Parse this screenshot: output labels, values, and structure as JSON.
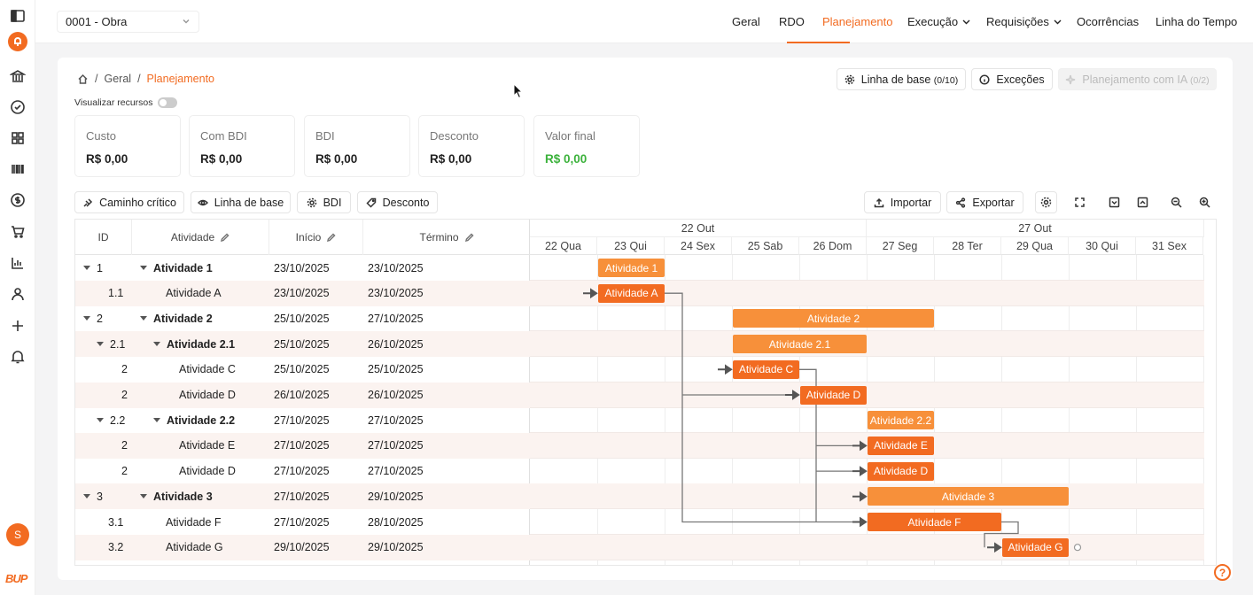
{
  "sidebar": {
    "icons": [
      "sidebar-toggle-icon",
      "bell-icon",
      "bank-icon",
      "check-circle-icon",
      "grid-icon",
      "barcode-icon",
      "dollar-icon",
      "cart-icon",
      "bar-chart-icon",
      "user-icon",
      "plus-icon",
      "notification-icon"
    ],
    "avatar_initial": "S",
    "logo": "BUP"
  },
  "topbar": {
    "project": "0001 - Obra",
    "nav": [
      {
        "label": "Geral"
      },
      {
        "label": "RDO"
      },
      {
        "label": "Planejamento",
        "active": true
      },
      {
        "label": "Execução",
        "dropdown": true
      },
      {
        "label": "Requisições",
        "dropdown": true
      },
      {
        "label": "Ocorrências"
      },
      {
        "label": "Linha do Tempo"
      }
    ]
  },
  "breadcrumb": {
    "items": [
      "Geral",
      "Planejamento"
    ]
  },
  "header_buttons": {
    "baseline_label": "Linha de base",
    "baseline_count": "(0/10)",
    "exceptions_label": "Exceções",
    "ai_label": "Planejamento com IA",
    "ai_count": "(0/2)"
  },
  "resources_toggle": {
    "label": "Visualizar recursos",
    "on": false
  },
  "kpis": [
    {
      "label": "Custo",
      "value": "R$ 0,00"
    },
    {
      "label": "Com BDI",
      "value": "R$ 0,00"
    },
    {
      "label": "BDI",
      "value": "R$ 0,00"
    },
    {
      "label": "Desconto",
      "value": "R$ 0,00"
    },
    {
      "label": "Valor final",
      "value": "R$ 0,00",
      "color": "#3cb23c"
    }
  ],
  "toolbar": {
    "critical_path": "Caminho crítico",
    "baseline": "Linha de base",
    "bdi": "BDI",
    "discount": "Desconto",
    "import": "Importar",
    "export": "Exportar"
  },
  "table": {
    "headers": {
      "id": "ID",
      "activity": "Atividade",
      "start": "Início",
      "end": "Término"
    },
    "rows": [
      {
        "id": "1",
        "name": "Atividade 1",
        "start": "23/10/2025",
        "end": "23/10/2025"
      },
      {
        "id": "1.1",
        "name": "Atividade A",
        "start": "23/10/2025",
        "end": "23/10/2025"
      },
      {
        "id": "2",
        "name": "Atividade 2",
        "start": "25/10/2025",
        "end": "27/10/2025"
      },
      {
        "id": "2.1",
        "name": "Atividade 2.1",
        "start": "25/10/2025",
        "end": "26/10/2025"
      },
      {
        "id": "2",
        "name": "Atividade C",
        "start": "25/10/2025",
        "end": "25/10/2025"
      },
      {
        "id": "2",
        "name": "Atividade D",
        "start": "26/10/2025",
        "end": "26/10/2025"
      },
      {
        "id": "2.2",
        "name": "Atividade 2.2",
        "start": "27/10/2025",
        "end": "27/10/2025"
      },
      {
        "id": "2",
        "name": "Atividade E",
        "start": "27/10/2025",
        "end": "27/10/2025"
      },
      {
        "id": "2",
        "name": "Atividade D",
        "start": "27/10/2025",
        "end": "27/10/2025"
      },
      {
        "id": "3",
        "name": "Atividade 3",
        "start": "27/10/2025",
        "end": "29/10/2025"
      },
      {
        "id": "3.1",
        "name": "Atividade F",
        "start": "27/10/2025",
        "end": "28/10/2025"
      },
      {
        "id": "3.2",
        "name": "Atividade G",
        "start": "29/10/2025",
        "end": "29/10/2025"
      }
    ]
  },
  "gantt": {
    "weeks": [
      "22 Out",
      "27 Out"
    ],
    "days": [
      "22 Qua",
      "23 Qui",
      "24 Sex",
      "25 Sab",
      "26 Dom",
      "27 Seg",
      "28 Ter",
      "29 Qua",
      "30 Qui",
      "31 Sex"
    ],
    "bars": [
      {
        "label": "Atividade 1",
        "start_day": 1,
        "span": 1,
        "kind": "group"
      },
      {
        "label": "Atividade A",
        "start_day": 1,
        "span": 1,
        "kind": "task"
      },
      {
        "label": "Atividade 2",
        "start_day": 3,
        "span": 3,
        "kind": "group"
      },
      {
        "label": "Atividade 2.1",
        "start_day": 3,
        "span": 2,
        "kind": "group"
      },
      {
        "label": "Atividade C",
        "start_day": 3,
        "span": 1,
        "kind": "task"
      },
      {
        "label": "Atividade D",
        "start_day": 4,
        "span": 1,
        "kind": "task"
      },
      {
        "label": "Atividade 2.2",
        "start_day": 5,
        "span": 1,
        "kind": "group"
      },
      {
        "label": "Atividade E",
        "start_day": 5,
        "span": 1,
        "kind": "task"
      },
      {
        "label": "Atividade D",
        "start_day": 5,
        "span": 1,
        "kind": "task"
      },
      {
        "label": "Atividade 3",
        "start_day": 5,
        "span": 3,
        "kind": "group"
      },
      {
        "label": "Atividade F",
        "start_day": 5,
        "span": 2,
        "kind": "task"
      },
      {
        "label": "Atividade G",
        "start_day": 7,
        "span": 1,
        "kind": "task"
      }
    ],
    "colors": {
      "group": "#f7903a",
      "task": "#f26b21",
      "accent": "#f26b21"
    }
  }
}
